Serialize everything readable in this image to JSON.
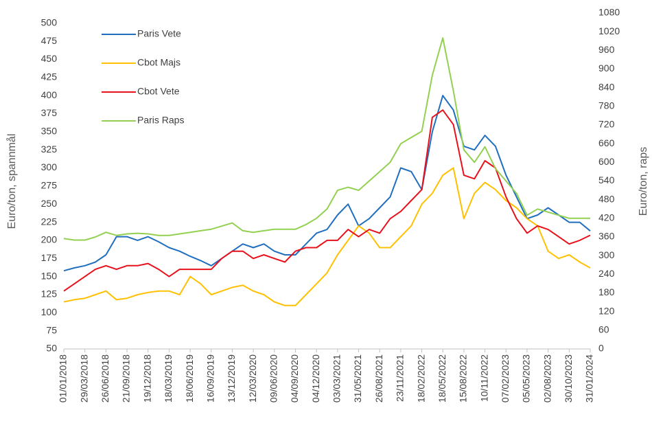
{
  "chart_data": {
    "type": "line",
    "y_label": "Euro/ton, spannmål",
    "y2_label": "Euro/ton, raps",
    "categories": [
      "01/01/2018",
      null,
      "29/03/2018",
      null,
      "26/06/2018",
      null,
      "21/09/2018",
      null,
      "19/12/2018",
      null,
      "18/03/2019",
      null,
      "18/06/2019",
      null,
      "16/09/2019",
      null,
      "13/12/2019",
      null,
      "12/03/2020",
      null,
      "09/06/2020",
      null,
      "04/09/2020",
      null,
      "04/12/2020",
      null,
      "03/03/2021",
      null,
      "31/05/2021",
      null,
      "26/08/2021",
      null,
      "23/11/2021",
      null,
      "18/02/2022",
      null,
      "18/05/2022",
      null,
      "15/08/2022",
      null,
      "10/11/2022",
      null,
      "07/02/2023",
      null,
      "05/05/2023",
      null,
      "02/08/2023",
      null,
      "30/10/2023",
      null,
      "31/01/2024"
    ],
    "series": [
      {
        "name": "Paris Vete",
        "color": "#1f6ebf",
        "values": [
          158,
          162,
          165,
          170,
          180,
          205,
          205,
          200,
          205,
          198,
          190,
          185,
          178,
          172,
          165,
          175,
          185,
          195,
          190,
          195,
          185,
          180,
          180,
          195,
          210,
          215,
          235,
          250,
          220,
          230,
          245,
          260,
          300,
          295,
          270,
          350,
          400,
          380,
          330,
          325,
          345,
          330,
          290,
          260,
          230,
          235,
          245,
          235,
          225,
          225,
          213
        ]
      },
      {
        "name": "Cbot Majs",
        "color": "#ffc000",
        "values": [
          115,
          118,
          120,
          125,
          130,
          118,
          120,
          125,
          128,
          130,
          130,
          125,
          150,
          140,
          125,
          130,
          135,
          138,
          130,
          125,
          115,
          110,
          110,
          125,
          140,
          155,
          180,
          200,
          220,
          210,
          190,
          190,
          205,
          220,
          250,
          265,
          290,
          300,
          230,
          265,
          280,
          270,
          255,
          245,
          230,
          220,
          185,
          175,
          180,
          170,
          162
        ]
      },
      {
        "name": "Cbot Vete",
        "color": "#e8101a",
        "values": [
          130,
          140,
          150,
          160,
          165,
          160,
          165,
          165,
          168,
          160,
          150,
          160,
          160,
          160,
          160,
          175,
          185,
          185,
          175,
          180,
          175,
          170,
          185,
          190,
          190,
          200,
          200,
          215,
          205,
          215,
          210,
          230,
          240,
          255,
          270,
          370,
          380,
          360,
          290,
          285,
          310,
          300,
          260,
          230,
          210,
          220,
          215,
          205,
          195,
          200,
          207
        ]
      },
      {
        "name": "Paris Raps",
        "color": "#92d050",
        "axis": "y2",
        "values": [
          355,
          350,
          350,
          360,
          375,
          365,
          370,
          372,
          370,
          365,
          365,
          370,
          375,
          380,
          385,
          395,
          405,
          380,
          375,
          380,
          385,
          385,
          385,
          400,
          420,
          450,
          510,
          520,
          510,
          540,
          570,
          600,
          660,
          680,
          700,
          880,
          1000,
          830,
          640,
          600,
          650,
          580,
          540,
          500,
          430,
          450,
          440,
          430,
          420,
          420,
          420
        ]
      }
    ],
    "ylim": [
      50,
      514
    ],
    "yticks": [
      50,
      75,
      100,
      125,
      150,
      175,
      200,
      225,
      250,
      275,
      300,
      325,
      350,
      375,
      400,
      425,
      450,
      475,
      500
    ],
    "y2lim": [
      0,
      1080
    ],
    "y2ticks": [
      0,
      60,
      120,
      180,
      240,
      300,
      360,
      420,
      480,
      540,
      600,
      660,
      720,
      780,
      840,
      900,
      960,
      1020,
      1080
    ],
    "legend": "top-left",
    "grid": false
  }
}
